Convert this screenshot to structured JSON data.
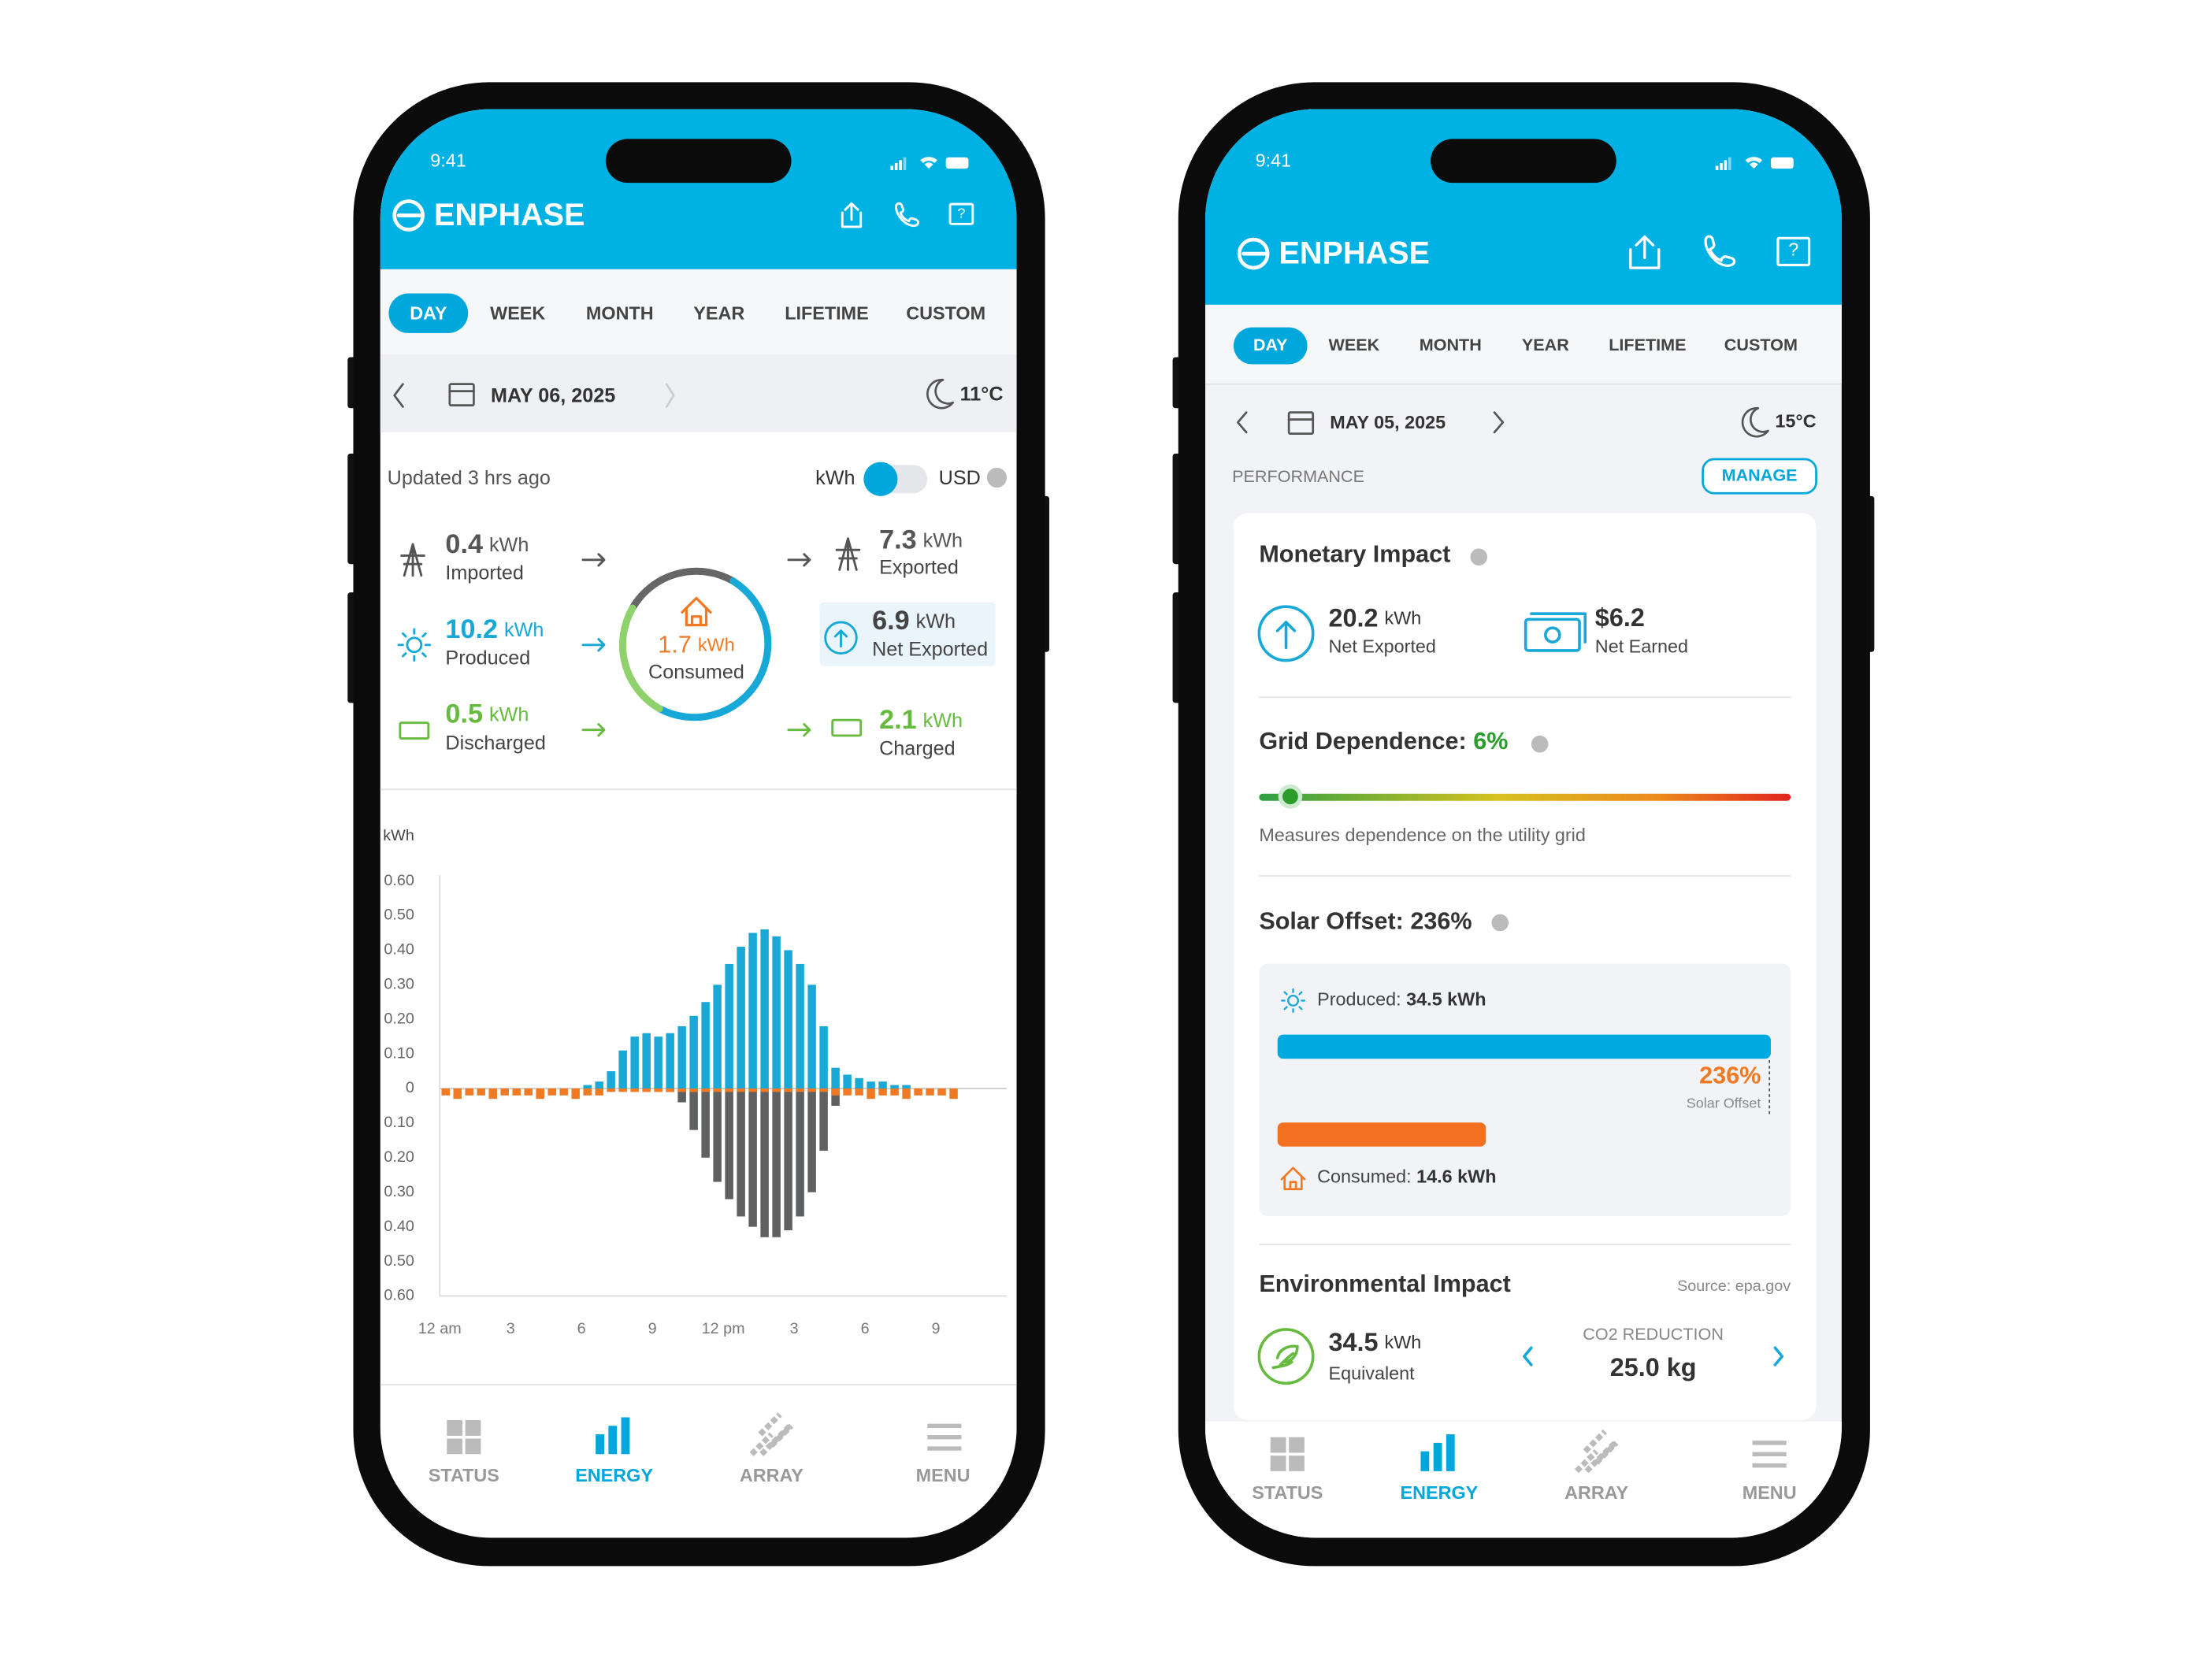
{
  "phone1": {
    "time": "9:41",
    "brand": "ENPHASE",
    "tabs": [
      "DAY",
      "WEEK",
      "MONTH",
      "YEAR",
      "LIFETIME",
      "CUSTOM"
    ],
    "date": "MAY 06, 2025",
    "temperature": "11°C",
    "updated": "Updated 3 hrs ago",
    "toggle_left": "kWh",
    "toggle_right": "USD",
    "flows": [
      {
        "value": 0.4,
        "unit": "kWh",
        "label": "Imported"
      },
      {
        "value": 10.2,
        "unit": "kWh",
        "label": "Produced"
      },
      {
        "value": 0.5,
        "unit": "kWh",
        "label": "Discharged"
      },
      {
        "value": 7.3,
        "unit": "kWh",
        "label": "Exported"
      },
      {
        "value": 6.9,
        "unit": "kWh",
        "label": "Net Exported"
      },
      {
        "value": 2.1,
        "unit": "kWh",
        "label": "Charged"
      }
    ],
    "center": {
      "value": 1.7,
      "unit": "kWh",
      "label": "Consumed"
    },
    "nav": [
      "STATUS",
      "ENERGY",
      "ARRAY",
      "MENU"
    ]
  },
  "chart_data": {
    "type": "bar",
    "y_label": "kWh",
    "x": [
      0,
      0.5,
      1,
      1.5,
      2,
      2.5,
      3,
      3.5,
      4,
      4.5,
      5,
      5.5,
      6,
      6.5,
      7,
      7.5,
      8,
      8.5,
      9,
      9.5,
      10,
      10.5,
      11,
      11.5,
      12,
      12.5,
      13,
      13.5,
      14,
      14.5,
      15,
      15.5,
      16,
      16.5,
      17,
      17.5,
      18,
      18.5,
      19,
      19.5,
      20,
      20.5,
      21,
      21.5
    ],
    "series": [
      {
        "color": "#1aa9d6",
        "values": [
          0,
          0,
          0,
          0,
          0,
          0,
          0,
          0,
          0,
          0,
          0,
          0,
          0.01,
          0.02,
          0.05,
          0.11,
          0.15,
          0.16,
          0.15,
          0.16,
          0.18,
          0.21,
          0.25,
          0.3,
          0.36,
          0.41,
          0.45,
          0.46,
          0.44,
          0.4,
          0.36,
          0.3,
          0.18,
          0.06,
          0.04,
          0.03,
          0.02,
          0.02,
          0.01,
          0.01,
          0,
          0,
          0,
          0
        ]
      },
      {
        "color": "#5f6062",
        "values": [
          0,
          0,
          0,
          0,
          0,
          0,
          0,
          0,
          0,
          0,
          0,
          0,
          0,
          0,
          0,
          0,
          0,
          0,
          0,
          -0.01,
          -0.04,
          -0.12,
          -0.2,
          -0.27,
          -0.32,
          -0.37,
          -0.4,
          -0.43,
          -0.43,
          -0.41,
          -0.37,
          -0.3,
          -0.18,
          -0.05,
          -0.01,
          0,
          0,
          0,
          0,
          0,
          0,
          0,
          0,
          0
        ]
      },
      {
        "color": "#f07a24",
        "values": [
          -0.02,
          -0.03,
          -0.02,
          -0.02,
          -0.03,
          -0.02,
          -0.02,
          -0.02,
          -0.03,
          -0.02,
          -0.02,
          -0.03,
          -0.02,
          -0.02,
          -0.01,
          -0.01,
          -0.01,
          -0.01,
          -0.01,
          -0.01,
          -0.01,
          -0.01,
          -0.01,
          -0.01,
          -0.01,
          -0.01,
          -0.01,
          -0.01,
          -0.01,
          -0.01,
          -0.01,
          -0.01,
          -0.01,
          -0.02,
          -0.02,
          -0.02,
          -0.03,
          -0.02,
          -0.02,
          -0.03,
          -0.02,
          -0.02,
          -0.02,
          -0.03
        ]
      }
    ],
    "xlim": [
      0,
      24
    ],
    "xticks": [
      {
        "value": 0,
        "label": "12 am"
      },
      3,
      6,
      9,
      {
        "value": 12,
        "label": "12 pm"
      },
      {
        "value": 15,
        "label": "3"
      },
      {
        "value": 18,
        "label": "6"
      },
      {
        "value": 21,
        "label": "9"
      }
    ],
    "ylim": [
      -0.6,
      0.6
    ],
    "yticks": [
      {
        "value": 0.6,
        "label": "0.60"
      },
      {
        "value": 0.5,
        "label": "0.50"
      },
      {
        "value": 0.4,
        "label": "0.40"
      },
      {
        "value": 0.3,
        "label": "0.30"
      },
      {
        "value": 0.2,
        "label": "0.20"
      },
      {
        "value": 0.1,
        "label": "0.10"
      },
      0,
      {
        "value": -0.1,
        "label": "0.10"
      },
      {
        "value": -0.2,
        "label": "0.20"
      },
      {
        "value": -0.3,
        "label": "0.30"
      },
      {
        "value": -0.4,
        "label": "0.40"
      },
      {
        "value": -0.5,
        "label": "0.50"
      },
      {
        "value": -0.6,
        "label": "0.60"
      }
    ]
  },
  "phone2": {
    "time": "9:41",
    "brand": "ENPHASE",
    "tabs": [
      "DAY",
      "WEEK",
      "MONTH",
      "YEAR",
      "LIFETIME",
      "CUSTOM"
    ],
    "date": "MAY 05, 2025",
    "temperature": "15°C",
    "section": "PERFORMANCE",
    "manage": "MANAGE",
    "monetary": {
      "title": "Monetary Impact",
      "exported_value": 20.2,
      "exported_unit": "kWh",
      "exported_label": "Net Exported",
      "earned_value": "$6.2",
      "earned_label": "Net Earned"
    },
    "grid": {
      "title": "Grid Dependence:",
      "value": "6%",
      "note": "Measures dependence on the utility grid"
    },
    "solar": {
      "title": "Solar Offset: 236%",
      "produced_label": "Produced:",
      "produced_value": "34.5 kWh",
      "offset_value": "236%",
      "offset_label": "Solar Offset",
      "consumed_label": "Consumed:",
      "consumed_value": "14.6 kWh"
    },
    "environment": {
      "title": "Environmental Impact",
      "source": "Source: epa.gov",
      "value": 34.5,
      "unit": "kWh",
      "label": "Equivalent",
      "co2_label": "CO2 REDUCTION",
      "co2_value": "25.0 kg"
    },
    "nav": [
      "STATUS",
      "ENERGY",
      "ARRAY",
      "MENU"
    ]
  }
}
